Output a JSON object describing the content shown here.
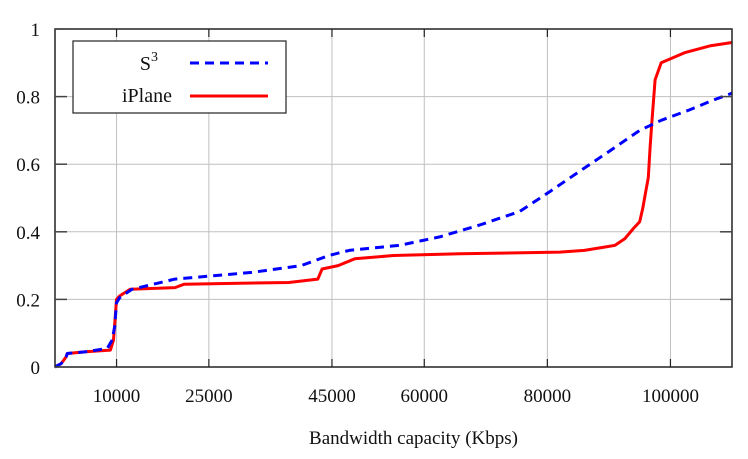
{
  "chart_data": {
    "type": "line",
    "title": "",
    "xlabel": "Bandwidth capacity (Kbps)",
    "ylabel": "",
    "xlim": [
      0,
      110000
    ],
    "ylim": [
      0,
      1
    ],
    "x_ticks": [
      10000,
      25000,
      45000,
      60000,
      80000,
      100000
    ],
    "x_tick_labels": [
      "10000",
      "25000",
      "45000",
      "60000",
      "80000",
      "100000"
    ],
    "y_ticks": [
      0,
      0.2,
      0.4,
      0.6,
      0.8,
      1
    ],
    "y_tick_labels": [
      "0",
      "0.2",
      "0.4",
      "0.6",
      "0.8",
      "1"
    ],
    "grid": true,
    "legend_position": "top-left",
    "series": [
      {
        "name": "S3",
        "legend_label": "S",
        "legend_superscript": "3",
        "color": "#0000ff",
        "style": "dashed",
        "x": [
          0,
          1000,
          1800,
          2000,
          5000,
          8500,
          9300,
          9700,
          10000,
          10500,
          12500,
          19500,
          32000,
          40000,
          44500,
          47800,
          56000,
          62500,
          69000,
          75500,
          80500,
          85300,
          90200,
          95000,
          98500,
          103000,
          107000,
          110000
        ],
        "y": [
          0,
          0.01,
          0.03,
          0.04,
          0.045,
          0.055,
          0.08,
          0.12,
          0.19,
          0.205,
          0.23,
          0.26,
          0.28,
          0.3,
          0.33,
          0.345,
          0.36,
          0.385,
          0.42,
          0.46,
          0.52,
          0.58,
          0.64,
          0.7,
          0.73,
          0.76,
          0.79,
          0.81
        ]
      },
      {
        "name": "iPlane",
        "legend_label": "iPlane",
        "color": "#ff0000",
        "style": "solid",
        "x": [
          0,
          1000,
          1800,
          2000,
          5000,
          9000,
          9500,
          9800,
          10000,
          10500,
          12200,
          19500,
          21000,
          30000,
          38000,
          42700,
          43400,
          46000,
          48700,
          55000,
          65800,
          82000,
          86000,
          89400,
          91000,
          92600,
          94000,
          95000,
          95500,
          96000,
          96400,
          96700,
          97000,
          97500,
          98500,
          102300,
          106400,
          110000
        ],
        "y": [
          0,
          0.01,
          0.03,
          0.04,
          0.045,
          0.05,
          0.08,
          0.15,
          0.2,
          0.21,
          0.23,
          0.235,
          0.245,
          0.248,
          0.25,
          0.26,
          0.29,
          0.3,
          0.32,
          0.33,
          0.335,
          0.34,
          0.345,
          0.355,
          0.36,
          0.38,
          0.41,
          0.43,
          0.47,
          0.52,
          0.56,
          0.65,
          0.73,
          0.85,
          0.9,
          0.93,
          0.95,
          0.96
        ]
      }
    ]
  }
}
